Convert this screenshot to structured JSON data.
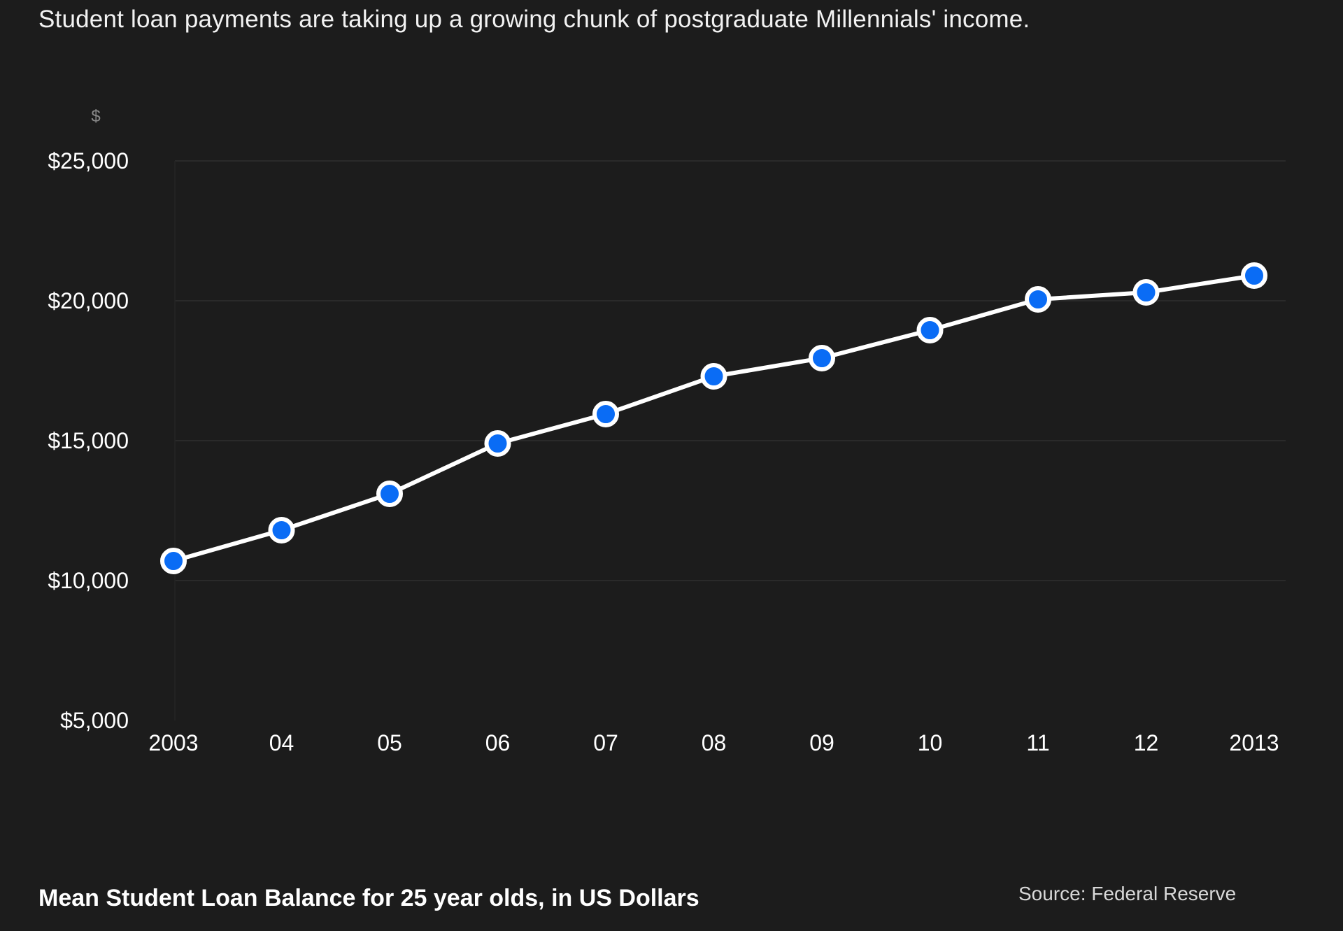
{
  "header": {
    "subtitle": "Student loan payments are taking up a growing chunk of postgraduate Millennials' income."
  },
  "footer": {
    "title": "Mean Student Loan Balance for 25 year olds, in US Dollars",
    "source": "Source: Federal Reserve"
  },
  "colors": {
    "background": "#1c1c1c",
    "line": "#ffffff",
    "marker_fill": "#0a6cf5",
    "marker_stroke": "#ffffff",
    "grid": "#2e2e2e"
  },
  "chart_data": {
    "type": "line",
    "title": "Mean Student Loan Balance for 25 year olds, in US Dollars",
    "subtitle": "Student loan payments are taking up a growing chunk of postgraduate Millennials' income.",
    "source": "Source: Federal Reserve",
    "y_unit_label": "$",
    "x": [
      2003,
      2004,
      2005,
      2006,
      2007,
      2008,
      2009,
      2010,
      2011,
      2012,
      2013
    ],
    "x_tick_labels": [
      "2003",
      "04",
      "05",
      "06",
      "07",
      "08",
      "09",
      "10",
      "11",
      "12",
      "2013"
    ],
    "values": [
      10700,
      11800,
      13100,
      14900,
      15950,
      17300,
      17950,
      18950,
      20050,
      20300,
      20900
    ],
    "y_ticks": [
      5000,
      10000,
      15000,
      20000,
      25000
    ],
    "y_tick_labels": [
      "$5,000",
      "$10,000",
      "$15,000",
      "$20,000",
      "$25,000"
    ],
    "ylim": [
      5000,
      25000
    ],
    "grid": true,
    "legend": "none"
  }
}
